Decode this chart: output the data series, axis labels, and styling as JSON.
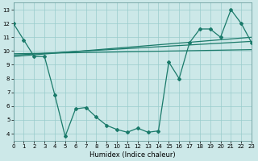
{
  "xlabel": "Humidex (Indice chaleur)",
  "xlim": [
    0,
    23
  ],
  "ylim": [
    3.5,
    13.5
  ],
  "yticks": [
    4,
    5,
    6,
    7,
    8,
    9,
    10,
    11,
    12,
    13
  ],
  "xticks": [
    0,
    1,
    2,
    3,
    4,
    5,
    6,
    7,
    8,
    9,
    10,
    11,
    12,
    13,
    14,
    15,
    16,
    17,
    18,
    19,
    20,
    21,
    22,
    23
  ],
  "bg_color": "#cce8e8",
  "line_color": "#1a7a6a",
  "grid_color": "#99cccc",
  "zigzag_x": [
    0,
    1,
    2,
    3,
    4,
    5,
    6,
    7,
    8,
    9,
    10,
    11,
    12,
    13,
    14,
    15,
    16,
    17,
    18,
    19,
    20,
    21,
    22,
    23
  ],
  "zigzag_y": [
    12.0,
    10.8,
    9.6,
    9.6,
    6.8,
    3.8,
    5.8,
    5.9,
    5.2,
    4.6,
    4.3,
    4.1,
    4.4,
    4.1,
    4.2,
    9.2,
    8.0,
    10.6,
    11.6,
    11.6,
    11.0,
    13.0,
    12.0,
    10.6
  ],
  "trend1_x": [
    0,
    23
  ],
  "trend1_y": [
    9.8,
    10.1
  ],
  "trend2_x": [
    0,
    23
  ],
  "trend2_y": [
    9.6,
    11.0
  ],
  "trend3_x": [
    0,
    23
  ],
  "trend3_y": [
    9.7,
    10.7
  ]
}
